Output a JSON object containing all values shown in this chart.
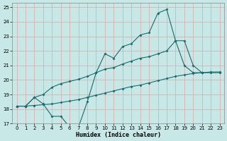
{
  "xlabel": "Humidex (Indice chaleur)",
  "bg_color": "#c8e8e8",
  "line_color": "#1a6b6b",
  "grid_color": "#b0d0d0",
  "xlim": [
    -0.5,
    23.5
  ],
  "ylim": [
    17,
    25.3
  ],
  "yticks": [
    17,
    18,
    19,
    20,
    21,
    22,
    23,
    24,
    25
  ],
  "xticks": [
    0,
    1,
    2,
    3,
    4,
    5,
    6,
    7,
    8,
    9,
    10,
    11,
    12,
    13,
    14,
    15,
    16,
    17,
    18,
    19,
    20,
    21,
    22,
    23
  ],
  "s1_x": [
    0,
    1,
    2,
    3,
    4,
    5,
    6,
    7,
    8,
    9,
    10,
    11,
    12,
    13,
    14,
    15,
    16,
    17,
    18,
    19,
    20,
    21
  ],
  "s1_y": [
    18.2,
    18.2,
    18.8,
    18.35,
    17.5,
    17.5,
    16.75,
    16.75,
    18.5,
    20.5,
    21.8,
    21.5,
    22.3,
    22.5,
    23.1,
    23.25,
    24.6,
    24.85,
    22.7,
    21.0,
    20.5,
    20.5
  ],
  "s2_x": [
    0,
    1,
    2,
    3,
    4,
    5,
    6,
    7,
    8,
    9,
    10,
    11,
    12,
    13,
    14,
    15,
    16,
    17,
    18,
    19,
    20,
    21,
    22,
    23
  ],
  "s2_y": [
    18.2,
    18.2,
    18.25,
    18.3,
    18.35,
    18.45,
    18.55,
    18.65,
    18.8,
    18.95,
    19.1,
    19.25,
    19.4,
    19.55,
    19.65,
    19.8,
    19.95,
    20.1,
    20.25,
    20.35,
    20.45,
    20.5,
    20.55,
    20.55
  ],
  "s3_x": [
    0,
    1,
    2,
    3,
    4,
    5,
    6,
    7,
    8,
    9,
    10,
    11,
    12,
    13,
    14,
    15,
    16,
    17,
    18,
    19,
    20,
    21,
    22,
    23
  ],
  "s3_y": [
    18.2,
    18.2,
    18.8,
    19.0,
    19.5,
    19.75,
    19.9,
    20.05,
    20.25,
    20.5,
    20.75,
    20.85,
    21.1,
    21.3,
    21.5,
    21.6,
    21.8,
    22.0,
    22.7,
    22.7,
    21.0,
    20.5,
    20.5,
    20.5
  ]
}
